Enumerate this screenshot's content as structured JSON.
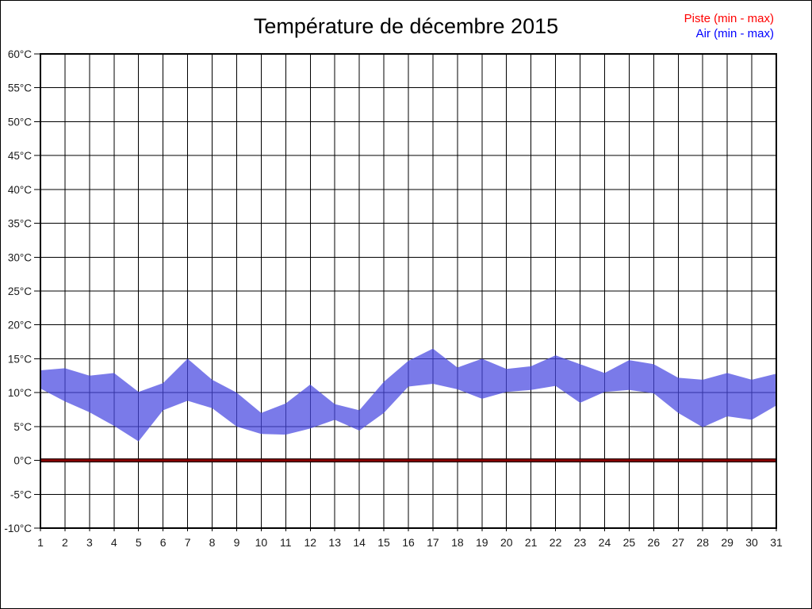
{
  "window": {
    "background_color": "#ffffff",
    "border_color": "#000000"
  },
  "header": {
    "title": "Température de décembre 2015",
    "legend": [
      {
        "label": "Piste (min - max)",
        "color": "#ff0000"
      },
      {
        "label": "Air (min - max)",
        "color": "#0000ff"
      }
    ]
  },
  "chart_data": {
    "type": "area",
    "title": "Température de décembre 2015",
    "xlabel": "",
    "ylabel": "",
    "x": [
      1,
      2,
      3,
      4,
      5,
      6,
      7,
      8,
      9,
      10,
      11,
      12,
      13,
      14,
      15,
      16,
      17,
      18,
      19,
      20,
      21,
      22,
      23,
      24,
      25,
      26,
      27,
      28,
      29,
      30,
      31
    ],
    "x_tick_labels": [
      "1",
      "2",
      "3",
      "4",
      "5",
      "6",
      "7",
      "8",
      "9",
      "10",
      "11",
      "12",
      "13",
      "14",
      "15",
      "16",
      "17",
      "18",
      "19",
      "20",
      "21",
      "22",
      "23",
      "24",
      "25",
      "26",
      "27",
      "28",
      "29",
      "30",
      "31"
    ],
    "y_ticks": [
      60,
      55,
      50,
      45,
      40,
      35,
      30,
      25,
      20,
      15,
      10,
      5,
      0,
      -5,
      -10
    ],
    "y_tick_labels": [
      "60°C",
      "55°C",
      "50°C",
      "45°C",
      "40°C",
      "35°C",
      "30°C",
      "25°C",
      "20°C",
      "15°C",
      "10°C",
      "5°C",
      "0°C",
      "-5°C",
      "-10°C"
    ],
    "ylim": [
      -10,
      60
    ],
    "grid": true,
    "gridline_color": "#000000",
    "legend_position": "top-right",
    "series": [
      {
        "name": "Piste (min - max)",
        "legend_color": "#ff0000",
        "style": "flat-line",
        "line_color": "#8b0000",
        "line_edge_color": "#1a0000",
        "values_min": [
          0,
          0,
          0,
          0,
          0,
          0,
          0,
          0,
          0,
          0,
          0,
          0,
          0,
          0,
          0,
          0,
          0,
          0,
          0,
          0,
          0,
          0,
          0,
          0,
          0,
          0,
          0,
          0,
          0,
          0,
          0
        ],
        "values_max": [
          0,
          0,
          0,
          0,
          0,
          0,
          0,
          0,
          0,
          0,
          0,
          0,
          0,
          0,
          0,
          0,
          0,
          0,
          0,
          0,
          0,
          0,
          0,
          0,
          0,
          0,
          0,
          0,
          0,
          0,
          0
        ]
      },
      {
        "name": "Air (min - max)",
        "legend_color": "#0000ff",
        "style": "band",
        "fill_color": "#4646e1",
        "fill_opacity": 0.72,
        "values_min": [
          10.6,
          8.7,
          7.1,
          5.1,
          2.8,
          7.4,
          8.8,
          7.7,
          5.0,
          3.9,
          3.8,
          4.7,
          6.0,
          4.4,
          7.0,
          10.9,
          11.3,
          10.5,
          9.1,
          10.1,
          10.4,
          11.0,
          8.5,
          10.1,
          10.4,
          9.9,
          7.0,
          4.9,
          6.5,
          6.0,
          8.1
        ],
        "values_max": [
          13.3,
          13.6,
          12.5,
          12.9,
          10.1,
          11.4,
          15.0,
          11.9,
          10.0,
          7.0,
          8.4,
          11.2,
          8.3,
          7.4,
          11.6,
          14.7,
          16.5,
          13.7,
          15.0,
          13.5,
          13.9,
          15.5,
          14.2,
          12.9,
          14.8,
          14.2,
          12.2,
          11.9,
          12.9,
          11.9,
          12.8
        ]
      }
    ]
  }
}
